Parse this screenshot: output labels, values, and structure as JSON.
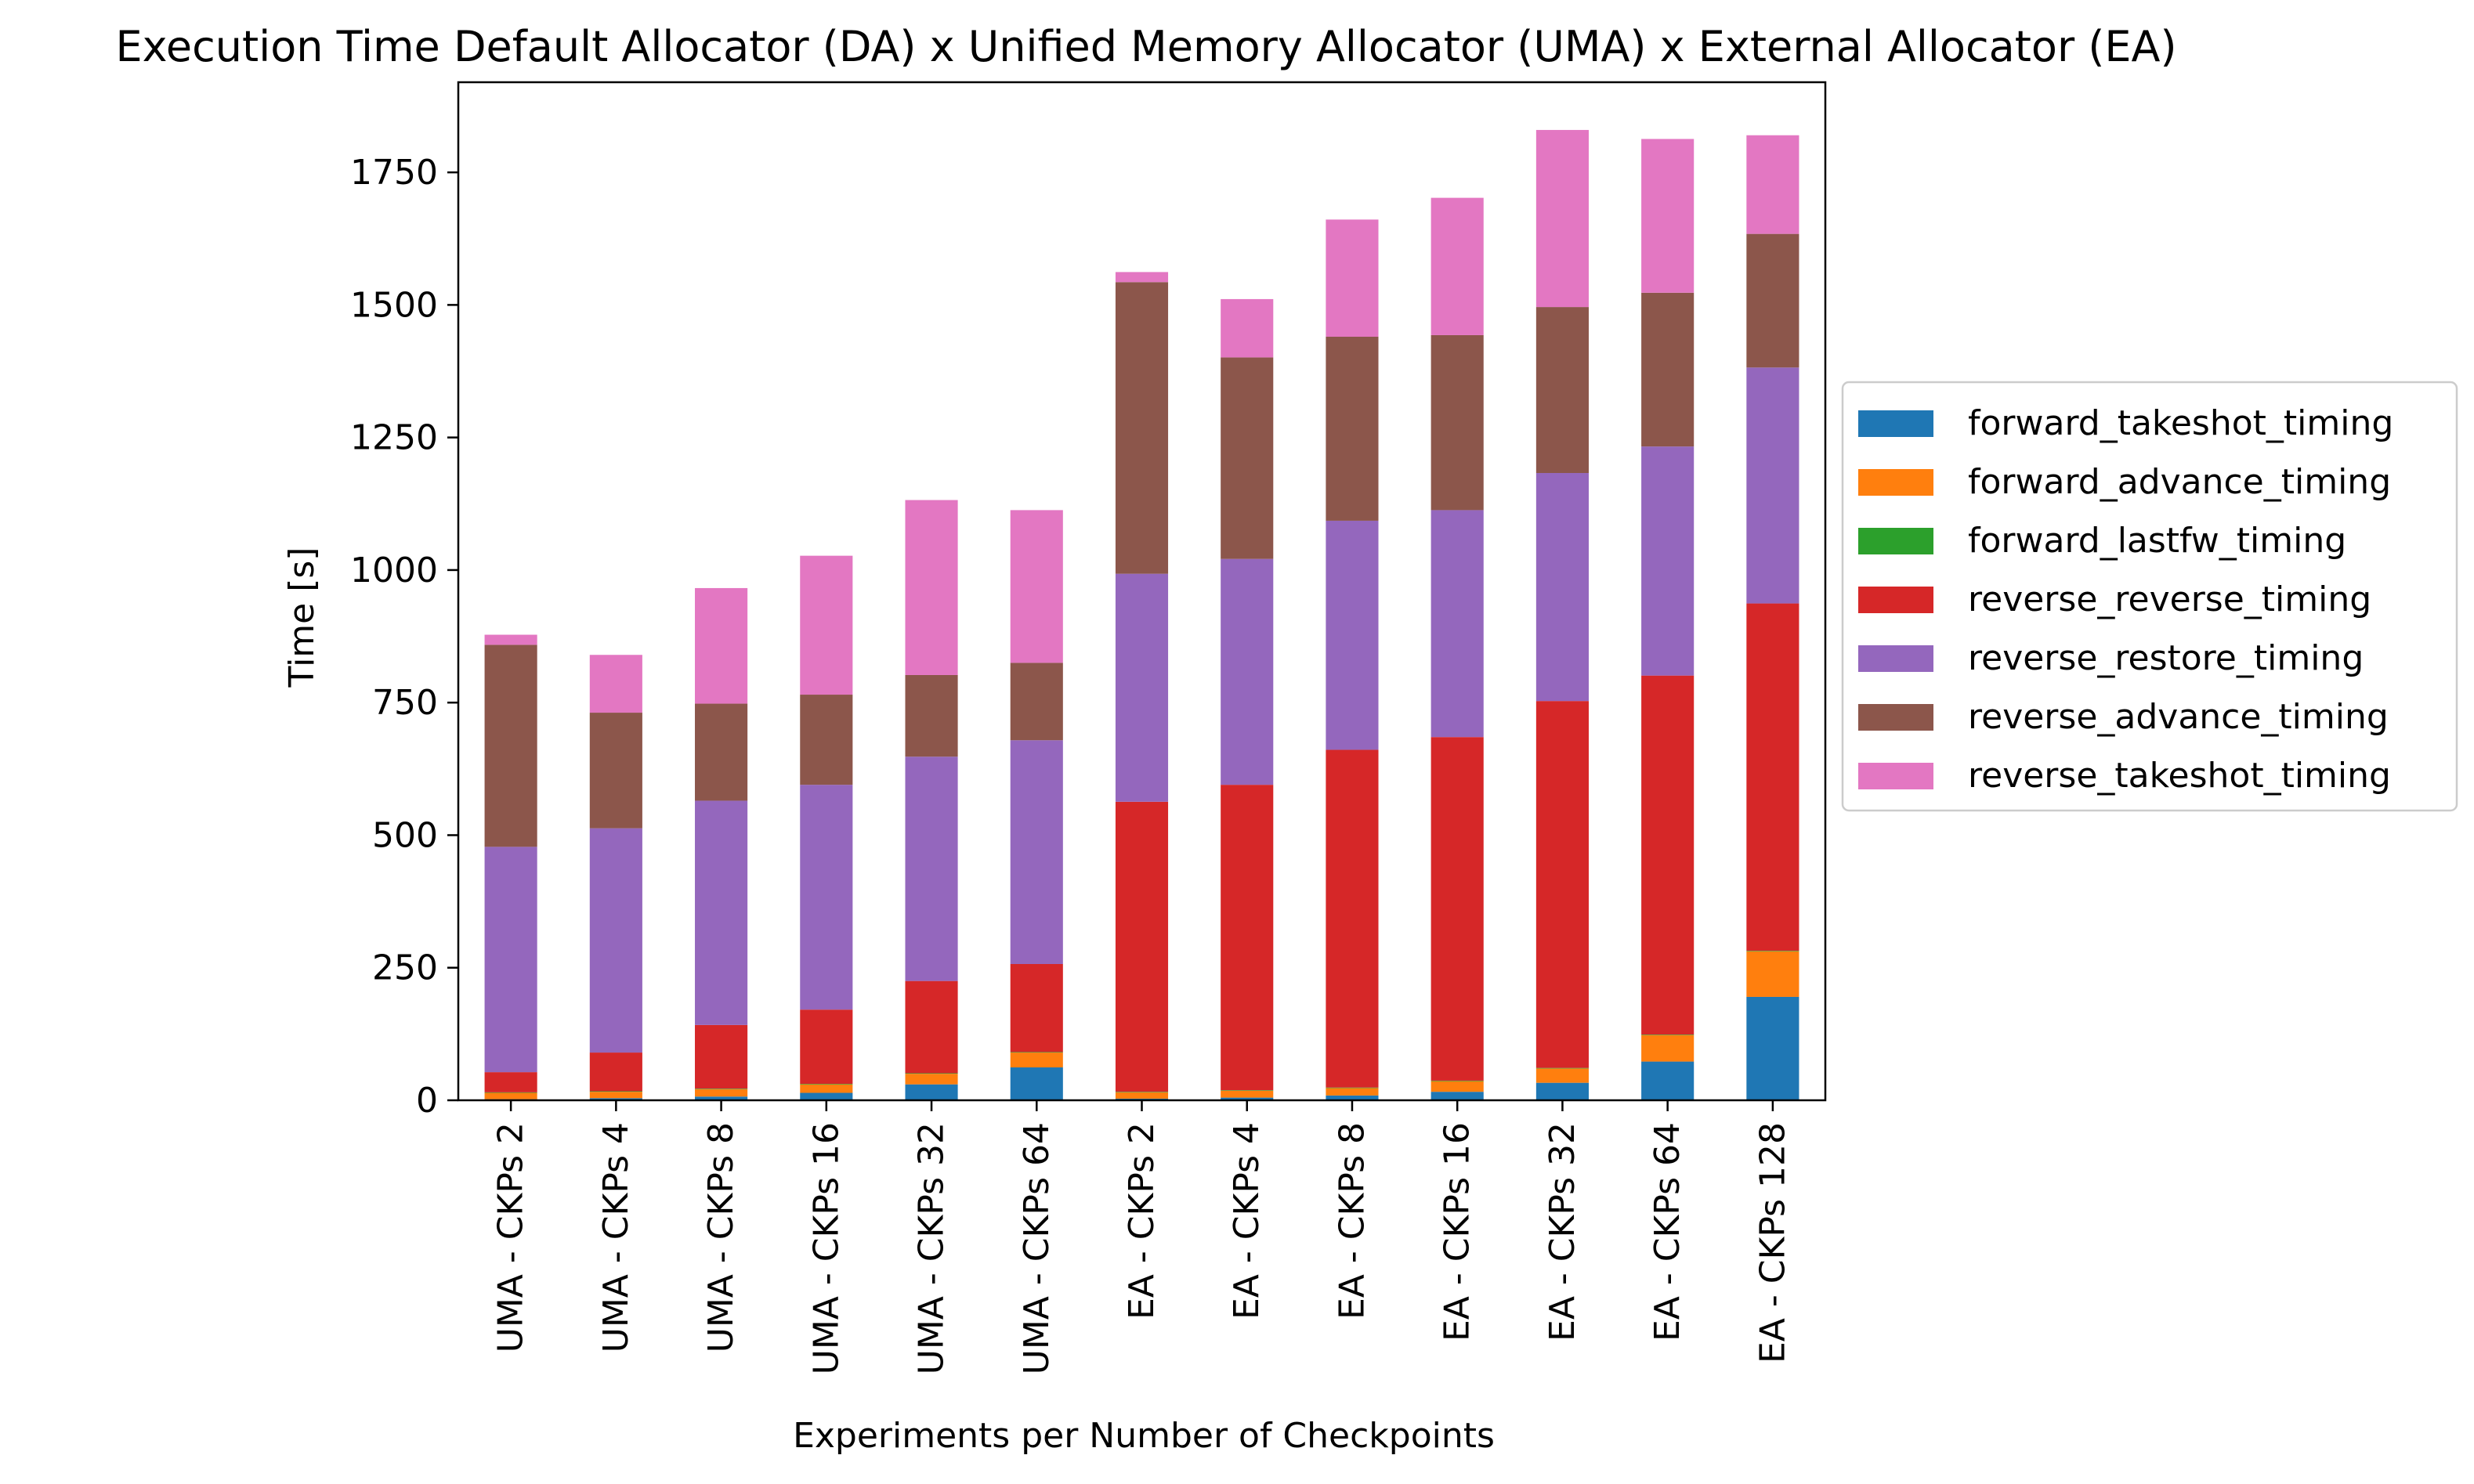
{
  "chart_data": {
    "type": "bar",
    "stacked": true,
    "title": "Execution Time Default Allocator (DA) x Unified Memory Allocator (UMA) x External Allocator (EA)",
    "xlabel": "Experiments per Number of Checkpoints",
    "ylabel": "Time [s]",
    "ylim": [
      0,
      1920
    ],
    "yticks": [
      0,
      250,
      500,
      750,
      1000,
      1250,
      1500,
      1750
    ],
    "legend_position": "center-right (outside plot)",
    "categories": [
      "UMA - CKPs 2",
      "UMA - CKPs 4",
      "UMA - CKPs 8",
      "UMA - CKPs 16",
      "UMA - CKPs 32",
      "UMA - CKPs 64",
      "EA - CKPs 2",
      "EA - CKPs 4",
      "EA - CKPs 8",
      "EA - CKPs 16",
      "EA - CKPs 32",
      "EA - CKPs 64",
      "EA - CKPs 128"
    ],
    "series": [
      {
        "name": "forward_takeshot_timing",
        "color": "#1f77b4",
        "values": [
          2,
          4,
          7,
          14,
          30,
          62,
          3,
          5,
          9,
          16,
          33,
          73,
          195
        ]
      },
      {
        "name": "forward_advance_timing",
        "color": "#ff7f0e",
        "values": [
          12,
          12,
          14,
          16,
          20,
          28,
          12,
          13,
          14,
          20,
          27,
          50,
          86
        ]
      },
      {
        "name": "forward_lastfw_timing",
        "color": "#2ca02c",
        "values": [
          1,
          1,
          1,
          1,
          1,
          1,
          1,
          1,
          1,
          1,
          1,
          1,
          1
        ]
      },
      {
        "name": "reverse_reverse_timing",
        "color": "#d62728",
        "values": [
          38,
          73,
          120,
          140,
          174,
          166,
          547,
          576,
          637,
          648,
          692,
          677,
          655
        ]
      },
      {
        "name": "reverse_restore_timing",
        "color": "#9467bd",
        "values": [
          425,
          423,
          423,
          424,
          423,
          422,
          430,
          426,
          432,
          428,
          430,
          432,
          445
        ]
      },
      {
        "name": "reverse_advance_timing",
        "color": "#8c564b",
        "values": [
          381,
          218,
          183,
          170,
          154,
          146,
          550,
          380,
          347,
          330,
          313,
          290,
          252
        ]
      },
      {
        "name": "reverse_takeshot_timing",
        "color": "#e377c2",
        "values": [
          19,
          109,
          218,
          262,
          330,
          288,
          19,
          110,
          221,
          259,
          334,
          290,
          186
        ]
      }
    ]
  }
}
